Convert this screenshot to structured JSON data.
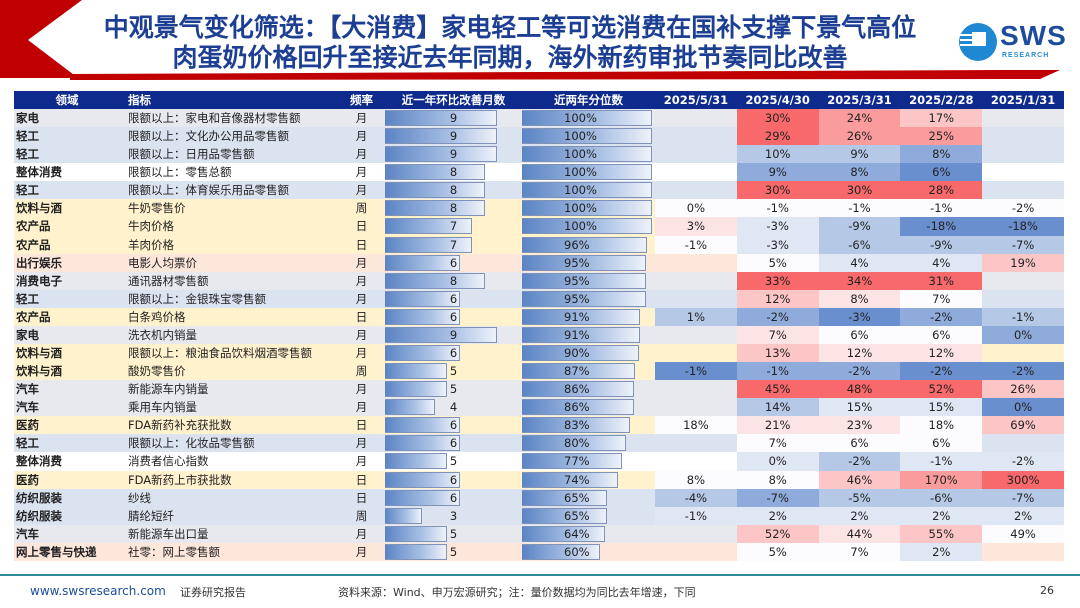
{
  "title": {
    "line1": "中观景气变化筛选：【大消费】家电轻工等可选消费在国补支撑下景气高位",
    "line2": "肉蛋奶价格回升至接近去年同期，海外新药审批节奏同比改善"
  },
  "logo": {
    "name": "SWS",
    "sub": "RESEARCH"
  },
  "colors": {
    "header_bg": "#0e2a8c",
    "accent_red": "#c00000",
    "row_bg": {
      "g": "#e7e9ef",
      "b": "#dce3f0",
      "w": "#ffffff",
      "y": "#fff2cc",
      "p": "#fde6da"
    },
    "heat": {
      "R3": "#f8696b",
      "R2": "#fa9c9d",
      "R1": "#fcc6c6",
      "R0": "#fde4e4",
      "W": "#fcfcff",
      "B0": "#dfe7f4",
      "B1": "#b5c8e6",
      "B2": "#8fabdb",
      "B3": "#6a8fcf"
    }
  },
  "table": {
    "headers": [
      "领域",
      "指标",
      "频率",
      "近一年环比改善月数",
      "近两年分位数",
      "2025/5/31",
      "2025/4/30",
      "2025/3/31",
      "2025/2/28",
      "2025/1/31"
    ],
    "rows": [
      {
        "sector": "家电",
        "indicator": "限额以上：家电和音像器材零售额",
        "freq": "月",
        "months": 9,
        "pct": "100%",
        "bg": "g",
        "cells": [
          [
            "",
            ""
          ],
          [
            "30%",
            "R3"
          ],
          [
            "24%",
            "R2"
          ],
          [
            "17%",
            "R1"
          ],
          [
            "",
            ""
          ]
        ]
      },
      {
        "sector": "轻工",
        "indicator": "限额以上：文化办公用品零售额",
        "freq": "月",
        "months": 9,
        "pct": "100%",
        "bg": "b",
        "cells": [
          [
            "",
            ""
          ],
          [
            "29%",
            "R3"
          ],
          [
            "26%",
            "R2"
          ],
          [
            "25%",
            "R2"
          ],
          [
            "",
            ""
          ]
        ]
      },
      {
        "sector": "轻工",
        "indicator": "限额以上：日用品零售额",
        "freq": "月",
        "months": 9,
        "pct": "100%",
        "bg": "b",
        "cells": [
          [
            "",
            ""
          ],
          [
            "10%",
            "B1"
          ],
          [
            "9%",
            "B1"
          ],
          [
            "8%",
            "B2"
          ],
          [
            "",
            ""
          ]
        ]
      },
      {
        "sector": "整体消费",
        "indicator": "限额以上：零售总额",
        "freq": "月",
        "months": 8,
        "pct": "100%",
        "bg": "w",
        "cells": [
          [
            "",
            ""
          ],
          [
            "9%",
            "B2"
          ],
          [
            "8%",
            "B2"
          ],
          [
            "6%",
            "B3"
          ],
          [
            "",
            ""
          ]
        ]
      },
      {
        "sector": "轻工",
        "indicator": "限额以上：体育娱乐用品零售额",
        "freq": "月",
        "months": 8,
        "pct": "100%",
        "bg": "b",
        "cells": [
          [
            "",
            ""
          ],
          [
            "30%",
            "R3"
          ],
          [
            "30%",
            "R3"
          ],
          [
            "28%",
            "R3"
          ],
          [
            "",
            ""
          ]
        ]
      },
      {
        "sector": "饮料与酒",
        "indicator": "牛奶零售价",
        "freq": "周",
        "months": 8,
        "pct": "100%",
        "bg": "y",
        "cells": [
          [
            "0%",
            "W"
          ],
          [
            "-1%",
            "W"
          ],
          [
            "-1%",
            "W"
          ],
          [
            "-1%",
            "W"
          ],
          [
            "-2%",
            "W"
          ]
        ]
      },
      {
        "sector": "农产品",
        "indicator": "牛肉价格",
        "freq": "日",
        "months": 7,
        "pct": "100%",
        "bg": "y",
        "cells": [
          [
            "3%",
            "R0"
          ],
          [
            "-3%",
            "B0"
          ],
          [
            "-9%",
            "B1"
          ],
          [
            "-18%",
            "B3"
          ],
          [
            "-18%",
            "B3"
          ]
        ]
      },
      {
        "sector": "农产品",
        "indicator": "羊肉价格",
        "freq": "日",
        "months": 7,
        "pct": "96%",
        "bg": "y",
        "cells": [
          [
            "-1%",
            "W"
          ],
          [
            "-3%",
            "B0"
          ],
          [
            "-6%",
            "B1"
          ],
          [
            "-9%",
            "B1"
          ],
          [
            "-7%",
            "B1"
          ]
        ]
      },
      {
        "sector": "出行娱乐",
        "indicator": "电影人均票价",
        "freq": "月",
        "months": 6,
        "pct": "95%",
        "bg": "p",
        "cells": [
          [
            "",
            ""
          ],
          [
            "5%",
            "W"
          ],
          [
            "4%",
            "B0"
          ],
          [
            "4%",
            "B0"
          ],
          [
            "19%",
            "R1"
          ]
        ]
      },
      {
        "sector": "消费电子",
        "indicator": "通讯器材零售额",
        "freq": "月",
        "months": 8,
        "pct": "95%",
        "bg": "g",
        "cells": [
          [
            "",
            ""
          ],
          [
            "33%",
            "R3"
          ],
          [
            "34%",
            "R3"
          ],
          [
            "31%",
            "R3"
          ],
          [
            "",
            ""
          ]
        ]
      },
      {
        "sector": "轻工",
        "indicator": "限额以上：金银珠宝零售额",
        "freq": "月",
        "months": 6,
        "pct": "95%",
        "bg": "b",
        "cells": [
          [
            "",
            ""
          ],
          [
            "12%",
            "R1"
          ],
          [
            "8%",
            "R0"
          ],
          [
            "7%",
            "W"
          ],
          [
            "",
            ""
          ]
        ]
      },
      {
        "sector": "农产品",
        "indicator": "白条鸡价格",
        "freq": "日",
        "months": 6,
        "pct": "91%",
        "bg": "y",
        "cells": [
          [
            "1%",
            "B1"
          ],
          [
            "-2%",
            "B2"
          ],
          [
            "-3%",
            "B3"
          ],
          [
            "-2%",
            "B2"
          ],
          [
            "-1%",
            "B1"
          ]
        ]
      },
      {
        "sector": "家电",
        "indicator": "洗衣机内销量",
        "freq": "月",
        "months": 9,
        "pct": "91%",
        "bg": "g",
        "cells": [
          [
            "",
            ""
          ],
          [
            "7%",
            "R0"
          ],
          [
            "6%",
            "W"
          ],
          [
            "6%",
            "W"
          ],
          [
            "0%",
            "B2"
          ]
        ]
      },
      {
        "sector": "饮料与酒",
        "indicator": "限额以上：粮油食品饮料烟酒零售额",
        "freq": "月",
        "months": 6,
        "pct": "90%",
        "bg": "y",
        "cells": [
          [
            "",
            ""
          ],
          [
            "13%",
            "R1"
          ],
          [
            "12%",
            "R0"
          ],
          [
            "12%",
            "R0"
          ],
          [
            "",
            ""
          ]
        ]
      },
      {
        "sector": "饮料与酒",
        "indicator": "酸奶零售价",
        "freq": "周",
        "months": 5,
        "pct": "87%",
        "bg": "y",
        "cells": [
          [
            "-1%",
            "B3"
          ],
          [
            "-1%",
            "B2"
          ],
          [
            "-2%",
            "B2"
          ],
          [
            "-2%",
            "B3"
          ],
          [
            "-2%",
            "B3"
          ]
        ]
      },
      {
        "sector": "汽车",
        "indicator": "新能源车内销量",
        "freq": "月",
        "months": 5,
        "pct": "86%",
        "bg": "g",
        "cells": [
          [
            "",
            ""
          ],
          [
            "45%",
            "R3"
          ],
          [
            "48%",
            "R3"
          ],
          [
            "52%",
            "R3"
          ],
          [
            "26%",
            "R1"
          ]
        ]
      },
      {
        "sector": "汽车",
        "indicator": "乘用车内销量",
        "freq": "月",
        "months": 4,
        "pct": "86%",
        "bg": "g",
        "cells": [
          [
            "",
            ""
          ],
          [
            "14%",
            "B1"
          ],
          [
            "15%",
            "B0"
          ],
          [
            "15%",
            "B0"
          ],
          [
            "0%",
            "B3"
          ]
        ]
      },
      {
        "sector": "医药",
        "indicator": "FDA新药补充获批数",
        "freq": "日",
        "months": 6,
        "pct": "83%",
        "bg": "y",
        "cells": [
          [
            "18%",
            "W"
          ],
          [
            "21%",
            "R0"
          ],
          [
            "23%",
            "R0"
          ],
          [
            "18%",
            "W"
          ],
          [
            "69%",
            "R1"
          ]
        ]
      },
      {
        "sector": "轻工",
        "indicator": "限额以上：化妆品零售额",
        "freq": "月",
        "months": 6,
        "pct": "80%",
        "bg": "b",
        "cells": [
          [
            "",
            ""
          ],
          [
            "7%",
            "W"
          ],
          [
            "6%",
            "W"
          ],
          [
            "6%",
            "W"
          ],
          [
            "",
            ""
          ]
        ]
      },
      {
        "sector": "整体消费",
        "indicator": "消费者信心指数",
        "freq": "月",
        "months": 5,
        "pct": "77%",
        "bg": "w",
        "cells": [
          [
            "",
            ""
          ],
          [
            "0%",
            "B0"
          ],
          [
            "-2%",
            "B1"
          ],
          [
            "-1%",
            "B0"
          ],
          [
            "-2%",
            "B0"
          ]
        ]
      },
      {
        "sector": "医药",
        "indicator": "FDA新药上市获批数",
        "freq": "日",
        "months": 6,
        "pct": "74%",
        "bg": "y",
        "cells": [
          [
            "8%",
            "W"
          ],
          [
            "8%",
            "W"
          ],
          [
            "46%",
            "R1"
          ],
          [
            "170%",
            "R2"
          ],
          [
            "300%",
            "R3"
          ]
        ]
      },
      {
        "sector": "纺织服装",
        "indicator": "纱线",
        "freq": "日",
        "months": 6,
        "pct": "65%",
        "bg": "b",
        "cells": [
          [
            "-4%",
            "B1"
          ],
          [
            "-7%",
            "B2"
          ],
          [
            "-5%",
            "B1"
          ],
          [
            "-6%",
            "B1"
          ],
          [
            "-7%",
            "B1"
          ]
        ]
      },
      {
        "sector": "纺织服装",
        "indicator": "腈纶短纤",
        "freq": "周",
        "months": 3,
        "pct": "65%",
        "bg": "b",
        "cells": [
          [
            "-1%",
            "B0"
          ],
          [
            "2%",
            "B0"
          ],
          [
            "2%",
            "B0"
          ],
          [
            "2%",
            "B0"
          ],
          [
            "2%",
            "B0"
          ]
        ]
      },
      {
        "sector": "汽车",
        "indicator": "新能源车出口量",
        "freq": "月",
        "months": 5,
        "pct": "64%",
        "bg": "g",
        "cells": [
          [
            "",
            ""
          ],
          [
            "52%",
            "R1"
          ],
          [
            "44%",
            "R0"
          ],
          [
            "55%",
            "R1"
          ],
          [
            "49%",
            "W"
          ]
        ]
      },
      {
        "sector": "网上零售与快递",
        "indicator": "社零：网上零售额",
        "freq": "月",
        "months": 5,
        "pct": "60%",
        "bg": "p",
        "cells": [
          [
            "",
            ""
          ],
          [
            "5%",
            "W"
          ],
          [
            "7%",
            "W"
          ],
          [
            "2%",
            "B0"
          ],
          [
            "",
            ""
          ]
        ]
      }
    ]
  },
  "footer": {
    "website": "www.swsresearch.com",
    "doc_type": "证券研究报告",
    "source": "资料来源：Wind、申万宏源研究；注：量价数据均为同比去年增速，下同",
    "page": "26"
  }
}
